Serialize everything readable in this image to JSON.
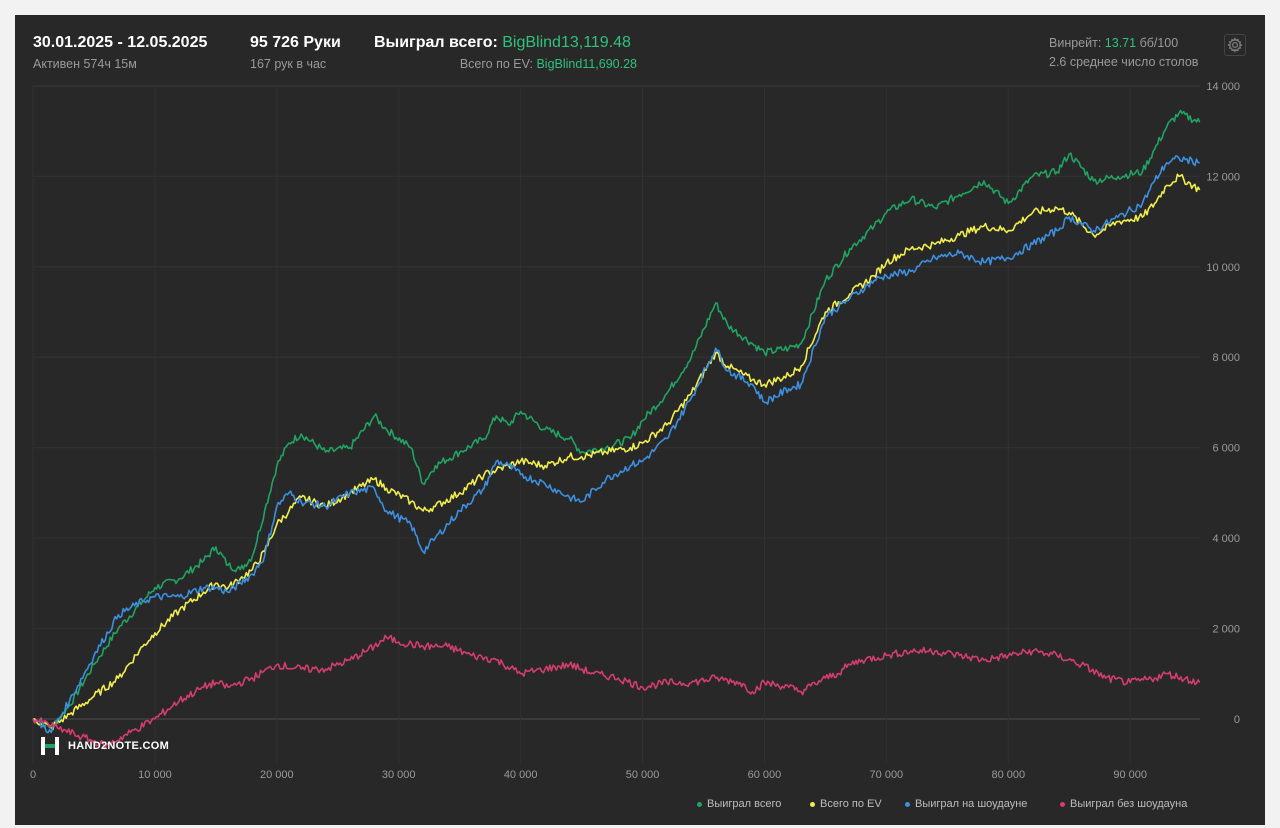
{
  "header": {
    "date_range": "30.01.2025 - 12.05.2025",
    "active": "Активен 574ч 15м",
    "hands": "95 726 Руки",
    "hands_per_hour": "167 рук в час",
    "won_label": "Выиграл всего:",
    "won_value": "BigBlind13,119.48",
    "ev_label": "Всего по EV:",
    "ev_value": "BigBlind11,690.28",
    "winrate_label": "Винрейт:",
    "winrate_value": "13.71",
    "winrate_unit": "бб/100",
    "tables": "2.6 среднее число столов"
  },
  "brand": {
    "logo_text": "HAND2NOTE.COM"
  },
  "icons": {
    "settings": "gear-icon",
    "logo": "h2n-logo-icon"
  },
  "colors": {
    "background": "#282828",
    "grid": "#3a3a3a",
    "axis_text": "#9a9a9a",
    "won_total": "#1fa463",
    "ev_total": "#f2ee4a",
    "showdown": "#3d8fe0",
    "non_showdown": "#d43d6e",
    "accent_green": "#2ec27e"
  },
  "chart_data": {
    "type": "line",
    "title": "",
    "xlabel": "",
    "ylabel": "",
    "xlim": [
      0,
      95726
    ],
    "ylim": [
      -1000,
      14000
    ],
    "x_ticks": [
      0,
      10000,
      20000,
      30000,
      40000,
      50000,
      60000,
      70000,
      80000,
      90000
    ],
    "x_tick_labels": [
      "0",
      "10 000",
      "20 000",
      "30 000",
      "40 000",
      "50 000",
      "60 000",
      "70 000",
      "80 000",
      "90 000"
    ],
    "y_ticks": [
      0,
      2000,
      4000,
      6000,
      8000,
      10000,
      12000,
      14000
    ],
    "y_tick_labels": [
      "0",
      "2 000",
      "4 000",
      "6 000",
      "8 000",
      "10 000",
      "12 000",
      "14 000"
    ],
    "grid": true,
    "legend_position": "bottom-right",
    "series": [
      {
        "name": "Выиграл всего",
        "color": "#1fa463",
        "x": [
          0,
          1500,
          3000,
          5000,
          7000,
          9000,
          10000,
          12000,
          14000,
          15000,
          16000,
          17000,
          18000,
          19000,
          20000,
          21000,
          22000,
          24000,
          26000,
          28000,
          29000,
          31000,
          32000,
          33000,
          35000,
          37000,
          38000,
          39000,
          40000,
          42000,
          44000,
          45000,
          47000,
          49000,
          50000,
          52000,
          54000,
          56000,
          57000,
          59000,
          60000,
          62000,
          63000,
          65000,
          67000,
          69000,
          70000,
          72000,
          74000,
          76000,
          78000,
          80000,
          82000,
          84000,
          85000,
          87000,
          89000,
          91000,
          92000,
          93000,
          94000,
          95700
        ],
        "y": [
          0,
          -200,
          300,
          1200,
          2000,
          2600,
          2900,
          3100,
          3500,
          3800,
          3400,
          3300,
          3600,
          4600,
          5600,
          6100,
          6300,
          5900,
          6000,
          6700,
          6400,
          6000,
          5200,
          5600,
          5900,
          6200,
          6700,
          6500,
          6800,
          6400,
          6200,
          5900,
          6000,
          6200,
          6600,
          7200,
          8000,
          9200,
          8700,
          8300,
          8100,
          8200,
          8300,
          9700,
          10400,
          10900,
          11200,
          11500,
          11300,
          11600,
          11900,
          11400,
          12000,
          12100,
          12500,
          11900,
          12000,
          12100,
          12600,
          13100,
          13400,
          13200
        ]
      },
      {
        "name": "Всего по EV",
        "color": "#f2ee4a",
        "x": [
          0,
          1500,
          3000,
          5000,
          7000,
          9000,
          10000,
          12000,
          14000,
          15000,
          16000,
          17000,
          18000,
          19000,
          20000,
          21000,
          22000,
          24000,
          26000,
          28000,
          29000,
          31000,
          32000,
          33000,
          35000,
          37000,
          38000,
          39000,
          40000,
          42000,
          44000,
          45000,
          47000,
          49000,
          50000,
          52000,
          54000,
          56000,
          57000,
          59000,
          60000,
          62000,
          63000,
          65000,
          67000,
          69000,
          70000,
          72000,
          74000,
          76000,
          78000,
          80000,
          82000,
          84000,
          85000,
          87000,
          89000,
          91000,
          92000,
          93000,
          94000,
          95700
        ],
        "y": [
          0,
          -200,
          100,
          500,
          900,
          1600,
          1900,
          2400,
          2800,
          3000,
          2900,
          3100,
          3300,
          3700,
          4300,
          4600,
          4900,
          4700,
          5000,
          5300,
          5100,
          4800,
          4600,
          4700,
          5000,
          5400,
          5500,
          5600,
          5700,
          5600,
          5800,
          5800,
          5900,
          6000,
          6100,
          6500,
          7200,
          8100,
          7800,
          7500,
          7400,
          7600,
          7800,
          9000,
          9400,
          9800,
          10100,
          10400,
          10500,
          10700,
          10900,
          10800,
          11200,
          11300,
          11200,
          10700,
          11000,
          11100,
          11400,
          11800,
          12000,
          11700
        ]
      },
      {
        "name": "Выиграл на шоудауне",
        "color": "#3d8fe0",
        "x": [
          0,
          1500,
          3000,
          5000,
          7000,
          9000,
          10000,
          12000,
          14000,
          15000,
          16000,
          17000,
          18000,
          19000,
          20000,
          21000,
          22000,
          24000,
          26000,
          28000,
          29000,
          31000,
          32000,
          33000,
          35000,
          37000,
          38000,
          39000,
          40000,
          42000,
          44000,
          45000,
          47000,
          49000,
          50000,
          52000,
          54000,
          56000,
          57000,
          59000,
          60000,
          62000,
          63000,
          65000,
          67000,
          69000,
          70000,
          72000,
          74000,
          76000,
          78000,
          80000,
          82000,
          84000,
          85000,
          87000,
          89000,
          91000,
          92000,
          93000,
          94000,
          95700
        ],
        "y": [
          0,
          -300,
          400,
          1400,
          2300,
          2600,
          2700,
          2700,
          2900,
          2900,
          2800,
          3000,
          3200,
          3600,
          4700,
          5000,
          4800,
          4700,
          5000,
          5100,
          4600,
          4300,
          3700,
          4000,
          4600,
          5100,
          5700,
          5600,
          5400,
          5200,
          4900,
          4800,
          5300,
          5600,
          5700,
          6200,
          7100,
          8200,
          7700,
          7400,
          7000,
          7300,
          7400,
          8900,
          9300,
          9700,
          9800,
          9900,
          10200,
          10300,
          10100,
          10200,
          10500,
          10800,
          11100,
          10800,
          11100,
          11400,
          11900,
          12300,
          12400,
          12300
        ]
      },
      {
        "name": "Выиграл без шоудауна",
        "color": "#d43d6e",
        "x": [
          0,
          2000,
          4000,
          6000,
          8000,
          10000,
          12000,
          14000,
          15000,
          16000,
          18000,
          20000,
          22000,
          24000,
          26000,
          28000,
          29000,
          30000,
          32000,
          34000,
          36000,
          38000,
          40000,
          42000,
          44000,
          46000,
          48000,
          50000,
          52000,
          54000,
          56000,
          58000,
          59000,
          60000,
          62000,
          63000,
          65000,
          66000,
          67000,
          68000,
          70000,
          72000,
          74000,
          76000,
          78000,
          80000,
          82000,
          84000,
          86000,
          88000,
          90000,
          92000,
          93000,
          95700
        ],
        "y": [
          0,
          -200,
          -400,
          -600,
          -300,
          0,
          400,
          700,
          800,
          700,
          900,
          1200,
          1100,
          1100,
          1300,
          1600,
          1800,
          1700,
          1600,
          1600,
          1400,
          1300,
          1000,
          1100,
          1200,
          1000,
          900,
          700,
          800,
          800,
          900,
          800,
          600,
          800,
          700,
          600,
          900,
          1000,
          1200,
          1300,
          1400,
          1500,
          1500,
          1400,
          1300,
          1400,
          1500,
          1400,
          1200,
          900,
          800,
          900,
          1000,
          800
        ]
      }
    ]
  }
}
